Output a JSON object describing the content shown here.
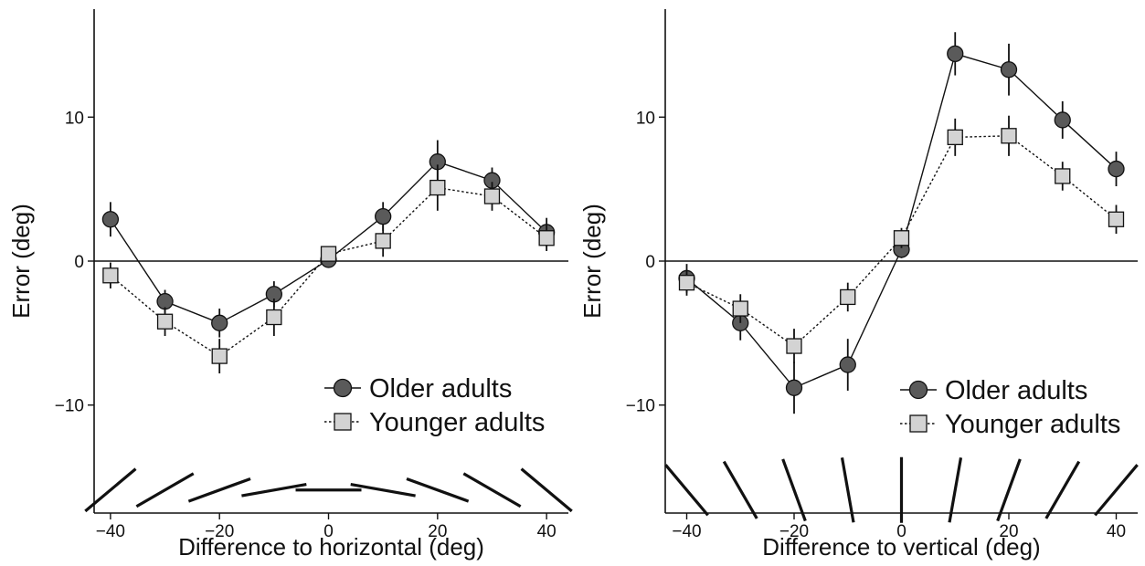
{
  "chart_data": [
    {
      "type": "line",
      "xlabel": "Difference to horizontal (deg)",
      "ylabel": "Error (deg)",
      "x": [
        -40,
        -30,
        -20,
        -10,
        0,
        10,
        20,
        30,
        40
      ],
      "xticks": [
        "−40",
        "−20",
        "0",
        "20",
        "40"
      ],
      "yticks": [
        "−10",
        "0",
        "10"
      ],
      "xlim": [
        -43,
        44
      ],
      "ylim": [
        -17.5,
        17.5
      ],
      "grid": false,
      "legend_position": "bottom-right",
      "orientation_guides": "horizontal",
      "series": [
        {
          "name": "Older adults",
          "marker": "circle",
          "line": "solid",
          "color": "#5a5a5a",
          "values": [
            2.9,
            -2.8,
            -4.3,
            -2.3,
            0.1,
            3.1,
            6.9,
            5.6,
            2.0
          ],
          "error": [
            1.2,
            0.8,
            1.0,
            0.9,
            0.4,
            1.0,
            1.5,
            0.9,
            1.0
          ]
        },
        {
          "name": "Younger adults",
          "marker": "square",
          "line": "dotted",
          "color": "#d3d3d3",
          "values": [
            -1.0,
            -4.2,
            -6.6,
            -3.9,
            0.5,
            1.4,
            5.1,
            4.5,
            1.6
          ],
          "error": [
            0.9,
            1.0,
            1.2,
            1.3,
            0.5,
            1.1,
            1.6,
            1.0,
            0.9
          ]
        }
      ]
    },
    {
      "type": "line",
      "xlabel": "Difference to vertical (deg)",
      "ylabel": "Error (deg)",
      "x": [
        -40,
        -30,
        -20,
        -10,
        0,
        10,
        20,
        30,
        40
      ],
      "xticks": [
        "−40",
        "−20",
        "0",
        "20",
        "40"
      ],
      "yticks": [
        "−10",
        "0",
        "10"
      ],
      "xlim": [
        -44,
        44
      ],
      "ylim": [
        -17.5,
        17.5
      ],
      "grid": false,
      "legend_position": "bottom-right",
      "orientation_guides": "vertical",
      "series": [
        {
          "name": "Older adults",
          "marker": "circle",
          "line": "solid",
          "color": "#5a5a5a",
          "values": [
            -1.2,
            -4.3,
            -8.8,
            -7.2,
            0.8,
            14.4,
            13.3,
            9.8,
            6.4
          ],
          "error": [
            1.0,
            1.2,
            1.8,
            1.8,
            0.6,
            1.5,
            1.8,
            1.3,
            1.2
          ]
        },
        {
          "name": "Younger adults",
          "marker": "square",
          "line": "dotted",
          "color": "#d3d3d3",
          "values": [
            -1.5,
            -3.3,
            -5.9,
            -2.5,
            1.6,
            8.6,
            8.7,
            5.9,
            2.9
          ],
          "error": [
            0.9,
            1.0,
            1.2,
            1.0,
            0.7,
            1.3,
            1.4,
            1.0,
            1.0
          ]
        }
      ]
    }
  ]
}
